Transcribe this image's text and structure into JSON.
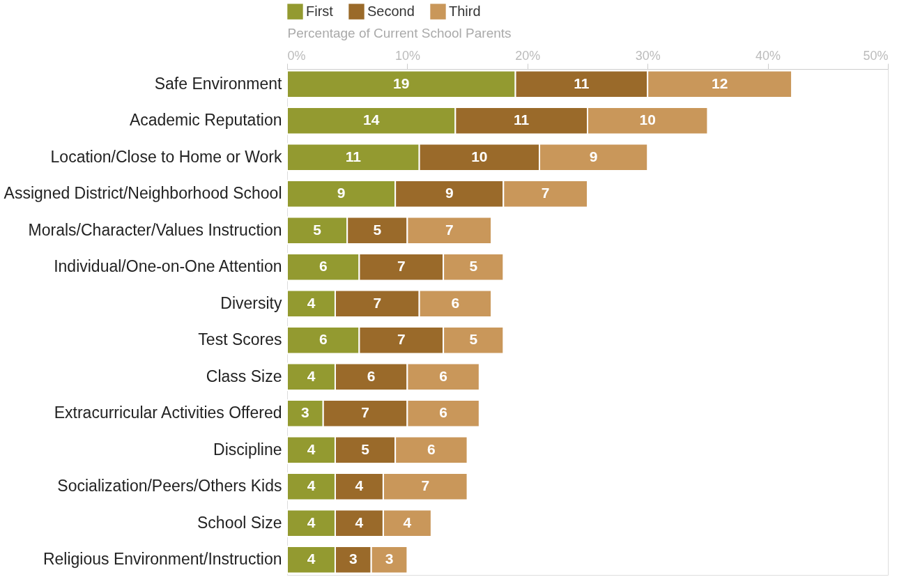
{
  "chart_data": {
    "type": "bar",
    "orientation": "horizontal",
    "stacked": true,
    "data_labels": true,
    "legend": "top",
    "grid": false,
    "xlabel": "Percentage of Current School Parents",
    "categories": [
      "Safe Environment",
      "Academic Reputation",
      "Location/Close to Home or Work",
      "Assigned District/Neighborhood School",
      "Morals/Character/Values Instruction",
      "Individual/One-on-One Attention",
      "Diversity",
      "Test Scores",
      "Class Size",
      "Extracurricular Activities Offered",
      "Discipline",
      "Socialization/Peers/Others Kids",
      "School Size",
      "Religious Environment/Instruction"
    ],
    "series": [
      {
        "name": "First",
        "color": "#939a30",
        "values": [
          19,
          14,
          11,
          9,
          5,
          6,
          4,
          6,
          4,
          3,
          4,
          4,
          4,
          4
        ]
      },
      {
        "name": "Second",
        "color": "#9a6a2a",
        "values": [
          11,
          11,
          10,
          9,
          5,
          7,
          7,
          7,
          6,
          7,
          5,
          4,
          4,
          3
        ]
      },
      {
        "name": "Third",
        "color": "#c9975a",
        "values": [
          12,
          10,
          9,
          7,
          7,
          5,
          6,
          5,
          6,
          6,
          6,
          7,
          4,
          3
        ]
      }
    ],
    "xlim": [
      0,
      50
    ],
    "xticks": [
      {
        "value": 0,
        "label": "0%"
      },
      {
        "value": 10,
        "label": "10%"
      },
      {
        "value": 20,
        "label": "20%"
      },
      {
        "value": 30,
        "label": "30%"
      },
      {
        "value": 40,
        "label": "40%"
      },
      {
        "value": 50,
        "label": "50%"
      }
    ]
  }
}
